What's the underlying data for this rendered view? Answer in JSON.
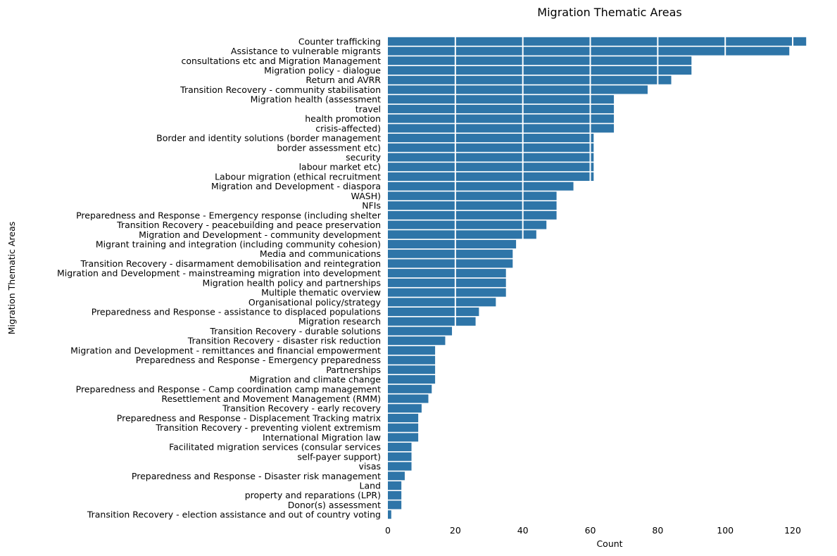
{
  "chart_data": {
    "type": "bar",
    "orientation": "horizontal",
    "title": "Migration Thematic Areas",
    "xlabel": "Count",
    "ylabel": "Migration Thematic Areas",
    "xlim": [
      0,
      125
    ],
    "xticks": [
      0,
      20,
      40,
      60,
      80,
      100,
      120
    ],
    "grid": true,
    "grid_axis": "x",
    "legend": "none",
    "bar_color": "#2e75a8",
    "grid_color": "#ffffff",
    "categories": [
      "Counter trafficking",
      "Assistance to vulnerable migrants",
      "consultations etc and Migration Management",
      "Migration policy - dialogue",
      "Return and AVRR",
      "Transition Recovery - community stabilisation",
      "Migration health (assessment",
      "travel",
      "health promotion",
      "crisis-affected)",
      "Border and identity solutions (border management",
      "border assessment etc)",
      "security",
      "labour market etc)",
      "Labour migration (ethical recruitment",
      "Migration and Development - diaspora",
      "WASH)",
      "NFIs",
      "Preparedness and Response - Emergency response (including shelter",
      "Transition Recovery - peacebuilding and peace preservation",
      "Migration and Development - community development",
      "Migrant training and integration (including community cohesion)",
      "Media and communications",
      "Transition Recovery - disarmament demobilisation and reintegration",
      "Migration and Development - mainstreaming migration into development",
      "Migration health policy and partnerships",
      "Multiple thematic overview",
      "Organisational policy/strategy",
      "Preparedness and Response - assistance to displaced populations",
      "Migration research",
      "Transition Recovery - durable solutions",
      "Transition Recovery - disaster risk reduction",
      "Migration and Development - remittances and financial empowerment",
      "Preparedness and Response - Emergency preparedness",
      "Partnerships",
      "Migration and climate change",
      "Preparedness and Response - Camp coordination camp management",
      "Resettlement and Movement Management (RMM)",
      "Transition Recovery - early recovery",
      "Preparedness and Response - Displacement Tracking matrix",
      "Transition Recovery - preventing violent extremism",
      "International Migration law",
      "Facilitated migration services (consular services",
      "self-payer support)",
      "visas",
      "Preparedness and Response - Disaster risk management",
      "Land",
      "property and reparations (LPR)",
      "Donor(s) assessment",
      "Transition Recovery - election assistance and out of country voting"
    ],
    "values": [
      124,
      119,
      90,
      90,
      84,
      77,
      67,
      67,
      67,
      67,
      61,
      61,
      61,
      61,
      61,
      55,
      50,
      50,
      50,
      47,
      44,
      38,
      37,
      37,
      35,
      35,
      35,
      32,
      27,
      26,
      19,
      17,
      14,
      14,
      14,
      14,
      13,
      12,
      10,
      9,
      9,
      9,
      7,
      7,
      7,
      5,
      4,
      4,
      4,
      1
    ]
  }
}
